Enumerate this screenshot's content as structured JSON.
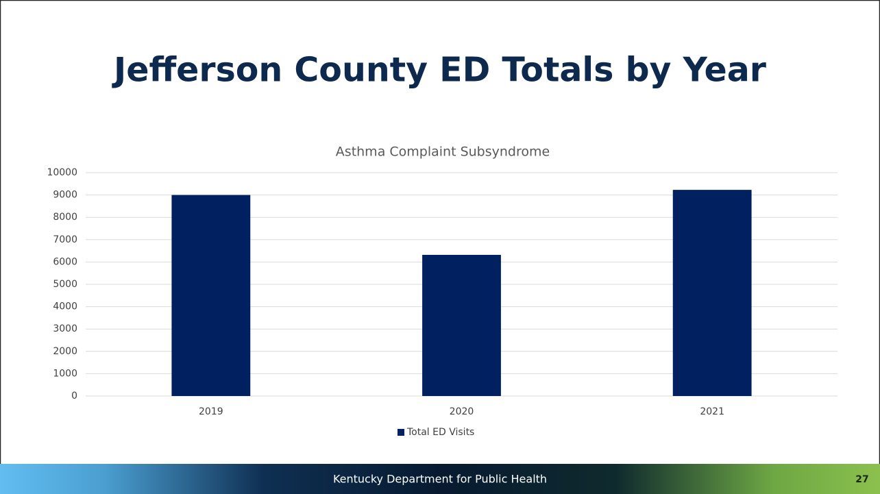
{
  "slide": {
    "title": "Jefferson County ED Totals by Year"
  },
  "chart_data": {
    "type": "bar",
    "title": "Asthma Complaint Subsyndrome",
    "categories": [
      "2019",
      "2020",
      "2021"
    ],
    "series": [
      {
        "name": "Total ED Visits",
        "color": "#002060",
        "values": [
          9000,
          6320,
          9230
        ]
      }
    ],
    "ylim": [
      0,
      10000
    ],
    "yticks": [
      0,
      1000,
      2000,
      3000,
      4000,
      5000,
      6000,
      7000,
      8000,
      9000,
      10000
    ],
    "grid": true,
    "legend": "bottom"
  },
  "footer": {
    "text": "Kentucky Department for Public Health",
    "page_number": "27"
  }
}
